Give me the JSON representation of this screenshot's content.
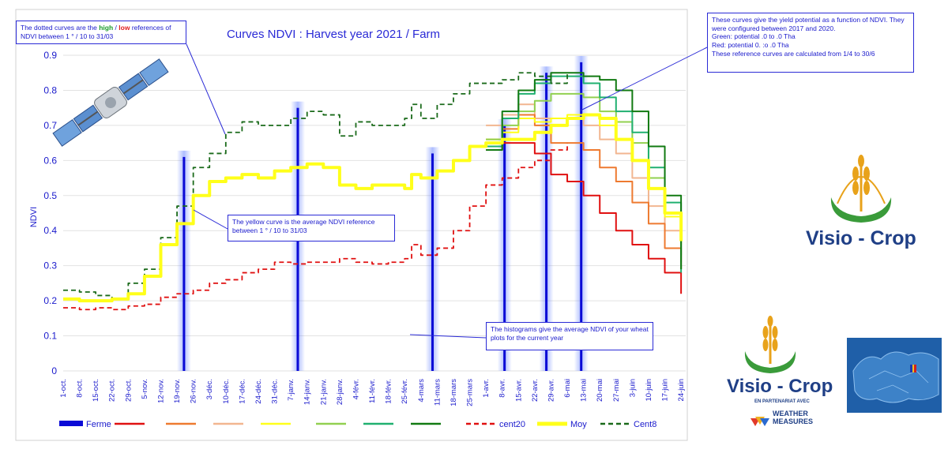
{
  "chart_data": {
    "type": "line",
    "title": "Curves NDVI : Harvest year 2021 /  Farm",
    "ylabel": "NDVI",
    "xlabel": "",
    "ylim": [
      0,
      0.9
    ],
    "yticks": [
      0,
      0.1,
      0.2,
      0.3,
      0.4,
      0.5,
      0.6,
      0.7,
      0.8,
      0.9
    ],
    "ytick_labels": [
      "0",
      "0.1",
      "0.2",
      "0.3",
      "0.4",
      "0.5",
      "0.6",
      "0.7",
      "0.8",
      "0.9"
    ],
    "x_labels": [
      "1-oct.",
      "8-oct.",
      "15-oct.",
      "22-oct.",
      "29-oct.",
      "5-nov.",
      "12-nov.",
      "19-nov.",
      "26-nov.",
      "3-déc.",
      "10-déc.",
      "17-déc.",
      "24-déc.",
      "31-déc.",
      "7-janv.",
      "14-janv.",
      "21-janv.",
      "28-janv.",
      "4-févr.",
      "11-févr.",
      "18-févr.",
      "25-févr.",
      "4-mars",
      "11-mars",
      "18-mars",
      "25-mars",
      "1-avr.",
      "8-avr.",
      "15-avr.",
      "22-avr.",
      "29-avr.",
      "6-mai",
      "13-mai",
      "20-mai",
      "27-mai",
      "3-juin",
      "10-juin",
      "17-juin",
      "24-juin"
    ],
    "legend": [
      {
        "label": "Ferme",
        "color": "#0a0ad6",
        "style": "bar"
      },
      {
        "label": "",
        "color": "#e01010",
        "style": "solid"
      },
      {
        "label": "",
        "color": "#ee7a30",
        "style": "solid"
      },
      {
        "label": "",
        "color": "#f2b690",
        "style": "solid"
      },
      {
        "label": "",
        "color": "#ffff1a",
        "style": "solid"
      },
      {
        "label": "",
        "color": "#92d050",
        "style": "solid"
      },
      {
        "label": "",
        "color": "#20b070",
        "style": "solid"
      },
      {
        "label": "",
        "color": "#127a12",
        "style": "solid"
      },
      {
        "label": "cent20",
        "color": "#e01010",
        "style": "dashed"
      },
      {
        "label": "Moy",
        "color": "#ffff1a",
        "style": "solid-thick"
      },
      {
        "label": "Cent8",
        "color": "#1a6a1a",
        "style": "dashed"
      }
    ],
    "series": [
      {
        "name": "cent20",
        "color": "#e01010",
        "style": "dashed",
        "x": [
          0,
          7,
          14,
          21,
          28,
          35,
          42,
          49,
          56,
          63,
          70,
          77,
          84,
          91,
          98,
          105,
          112,
          119,
          126,
          133,
          140,
          147,
          150,
          154,
          161,
          168,
          175,
          182,
          189,
          196,
          203,
          210,
          217
        ],
        "y": [
          0.18,
          0.175,
          0.18,
          0.175,
          0.185,
          0.19,
          0.21,
          0.22,
          0.23,
          0.25,
          0.26,
          0.28,
          0.29,
          0.31,
          0.305,
          0.31,
          0.31,
          0.32,
          0.31,
          0.305,
          0.31,
          0.32,
          0.36,
          0.33,
          0.35,
          0.4,
          0.47,
          0.53,
          0.55,
          0.58,
          0.6,
          0.63,
          0.65
        ]
      },
      {
        "name": "Moy",
        "color": "#ffff1a",
        "style": "solid-thick",
        "x": [
          0,
          7,
          14,
          21,
          28,
          35,
          42,
          49,
          56,
          63,
          70,
          77,
          84,
          91,
          98,
          105,
          112,
          119,
          126,
          133,
          140,
          147,
          150,
          154,
          161,
          168,
          175,
          182,
          189,
          196,
          203,
          210,
          217,
          224,
          231,
          238,
          245,
          252,
          259,
          266
        ],
        "y": [
          0.205,
          0.2,
          0.2,
          0.205,
          0.22,
          0.27,
          0.36,
          0.42,
          0.5,
          0.54,
          0.55,
          0.56,
          0.55,
          0.57,
          0.58,
          0.59,
          0.58,
          0.53,
          0.52,
          0.53,
          0.53,
          0.52,
          0.56,
          0.55,
          0.57,
          0.6,
          0.64,
          0.65,
          0.66,
          0.66,
          0.68,
          0.7,
          0.72,
          0.73,
          0.72,
          0.66,
          0.6,
          0.52,
          0.45,
          0.37
        ]
      },
      {
        "name": "Cent8",
        "color": "#1a6a1a",
        "style": "dashed",
        "x": [
          0,
          7,
          14,
          21,
          28,
          35,
          42,
          49,
          56,
          63,
          70,
          77,
          84,
          91,
          98,
          105,
          112,
          119,
          126,
          133,
          140,
          147,
          150,
          154,
          161,
          168,
          175,
          182,
          189,
          196,
          203,
          210,
          217
        ],
        "y": [
          0.23,
          0.225,
          0.215,
          0.205,
          0.25,
          0.29,
          0.38,
          0.47,
          0.58,
          0.62,
          0.68,
          0.71,
          0.7,
          0.7,
          0.72,
          0.74,
          0.73,
          0.67,
          0.71,
          0.7,
          0.7,
          0.72,
          0.76,
          0.72,
          0.76,
          0.79,
          0.82,
          0.82,
          0.83,
          0.85,
          0.84,
          0.82,
          0.85
        ]
      },
      {
        "name": "red",
        "color": "#e01010",
        "style": "solid",
        "x": [
          182,
          189,
          196,
          203,
          210,
          217,
          224,
          231,
          238,
          245,
          252,
          259,
          266
        ],
        "y": [
          0.63,
          0.65,
          0.65,
          0.62,
          0.56,
          0.54,
          0.5,
          0.45,
          0.4,
          0.36,
          0.32,
          0.28,
          0.22
        ]
      },
      {
        "name": "orange",
        "color": "#ee7a30",
        "style": "solid",
        "x": [
          182,
          189,
          196,
          203,
          210,
          217,
          224,
          231,
          238,
          245,
          252,
          259,
          266
        ],
        "y": [
          0.66,
          0.69,
          0.73,
          0.7,
          0.65,
          0.65,
          0.63,
          0.58,
          0.54,
          0.48,
          0.42,
          0.35,
          0.29
        ]
      },
      {
        "name": "light-orange",
        "color": "#f2b690",
        "style": "solid",
        "x": [
          182,
          189,
          196,
          203,
          210,
          217,
          224,
          231,
          238,
          245,
          252,
          259,
          266
        ],
        "y": [
          0.7,
          0.73,
          0.76,
          0.72,
          0.72,
          0.72,
          0.7,
          0.66,
          0.62,
          0.55,
          0.47,
          0.4,
          0.31
        ]
      },
      {
        "name": "yellow",
        "color": "#ffff1a",
        "style": "solid",
        "x": [
          182,
          189,
          196,
          203,
          210,
          217,
          224,
          231,
          238,
          245,
          252,
          259,
          266
        ],
        "y": [
          0.66,
          0.68,
          0.72,
          0.71,
          0.72,
          0.73,
          0.73,
          0.7,
          0.66,
          0.6,
          0.52,
          0.44,
          0.36
        ]
      },
      {
        "name": "light-green",
        "color": "#92d050",
        "style": "solid",
        "x": [
          182,
          189,
          196,
          203,
          210,
          217,
          224,
          231,
          238,
          245,
          252,
          259,
          266
        ],
        "y": [
          0.66,
          0.7,
          0.74,
          0.77,
          0.79,
          0.79,
          0.78,
          0.74,
          0.71,
          0.65,
          0.55,
          0.45,
          0.33
        ]
      },
      {
        "name": "green",
        "color": "#20b070",
        "style": "solid",
        "x": [
          182,
          189,
          196,
          203,
          210,
          217,
          224,
          231,
          238,
          245,
          252,
          259,
          266
        ],
        "y": [
          0.64,
          0.72,
          0.79,
          0.82,
          0.84,
          0.84,
          0.82,
          0.78,
          0.74,
          0.68,
          0.58,
          0.48,
          0.28
        ]
      },
      {
        "name": "dark-green",
        "color": "#127a12",
        "style": "solid",
        "x": [
          182,
          189,
          196,
          203,
          210,
          217,
          224,
          231,
          238,
          245,
          252,
          259,
          266
        ],
        "y": [
          0.63,
          0.74,
          0.8,
          0.83,
          0.85,
          0.85,
          0.84,
          0.83,
          0.8,
          0.74,
          0.64,
          0.5,
          0.29
        ]
      }
    ],
    "bars": {
      "name": "Ferme",
      "color": "#0a0ad6",
      "x": [
        52,
        101,
        159,
        190,
        208,
        223
      ],
      "y": [
        0.61,
        0.75,
        0.62,
        0.7,
        0.85,
        0.88
      ]
    }
  },
  "annotations": {
    "dotted": {
      "text_a": "The dotted curves are the ",
      "high": "high",
      "sep": " / ",
      "low": "low",
      "text_b": " references of NDVI between 1 ° / 10 to 31/03"
    },
    "yellow": "The yellow curve is the average NDVI reference between 1 ° / 10 to 31/03",
    "histograms": "The histograms give the average NDVI of your wheat plots for the current year",
    "potential": {
      "line1": "These curves give the yield potential as a function of NDVI. They were configured between 2017 and 2020.",
      "line2": "Green: potential   .0 to    .0 Tha",
      "line3": "Red: potential 0.    :o    .0 Tha",
      "line4": "These reference curves are calculated from 1/4 to 30/6"
    }
  },
  "logos": {
    "visio_crop_1": "Visio - Crop",
    "visio_crop_2": "Visio - Crop",
    "partner": "EN PARTENARIAT AVEC",
    "weather": "WEATHER",
    "measures": "MEASURES"
  }
}
